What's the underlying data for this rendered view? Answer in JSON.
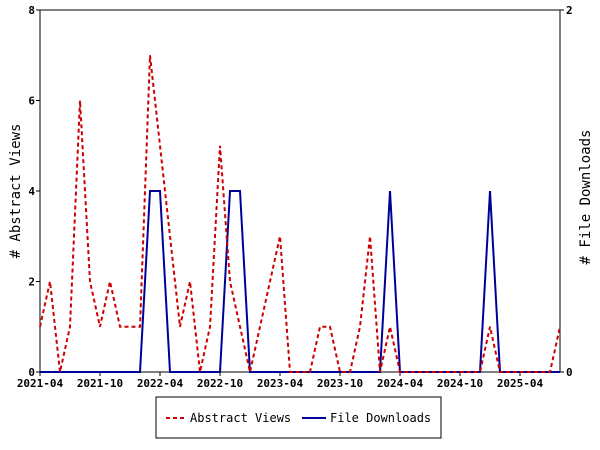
{
  "chart_data": {
    "type": "line",
    "x_tick_labels": [
      "2021-04",
      "2021-10",
      "2022-04",
      "2022-10",
      "2023-04",
      "2023-10",
      "2024-04",
      "2024-10",
      "2025-04"
    ],
    "x_tick_indices": [
      0,
      6,
      12,
      18,
      24,
      30,
      36,
      42,
      48
    ],
    "n_points": 53,
    "ylabel_left": "# Abstract Views",
    "ylabel_right": "# File Downloads",
    "ylim_left": [
      0,
      8
    ],
    "ylim_right": [
      0,
      2
    ],
    "y_ticks_left": [
      "0",
      "2",
      "4",
      "6",
      "8"
    ],
    "y_ticks_right": [
      "0",
      "2"
    ],
    "grid": false,
    "legend_position": "bottom",
    "series": [
      {
        "name": "Abstract Views",
        "axis": "left",
        "color": "#cc0000",
        "dash": true,
        "values": [
          1,
          2,
          0,
          1,
          6,
          2,
          1,
          2,
          1,
          1,
          1,
          7,
          5,
          3,
          1,
          2,
          0,
          1,
          5,
          2,
          1,
          0,
          1,
          2,
          3,
          0,
          0,
          0,
          1,
          1,
          0,
          0,
          1,
          3,
          0,
          1,
          0,
          0,
          0,
          0,
          0,
          0,
          0,
          0,
          0,
          1,
          0,
          0,
          0,
          0,
          0,
          0,
          1
        ]
      },
      {
        "name": "File Downloads",
        "axis": "right",
        "color": "#000099",
        "dash": false,
        "values": [
          0,
          0,
          0,
          0,
          0,
          0,
          0,
          0,
          0,
          0,
          0,
          1,
          1,
          0,
          0,
          0,
          0,
          0,
          0,
          1,
          1,
          0,
          0,
          0,
          0,
          0,
          0,
          0,
          0,
          0,
          0,
          0,
          0,
          0,
          0,
          1,
          0,
          0,
          0,
          0,
          0,
          0,
          0,
          0,
          0,
          1,
          0,
          0,
          0,
          0,
          0,
          0,
          0
        ]
      }
    ]
  }
}
